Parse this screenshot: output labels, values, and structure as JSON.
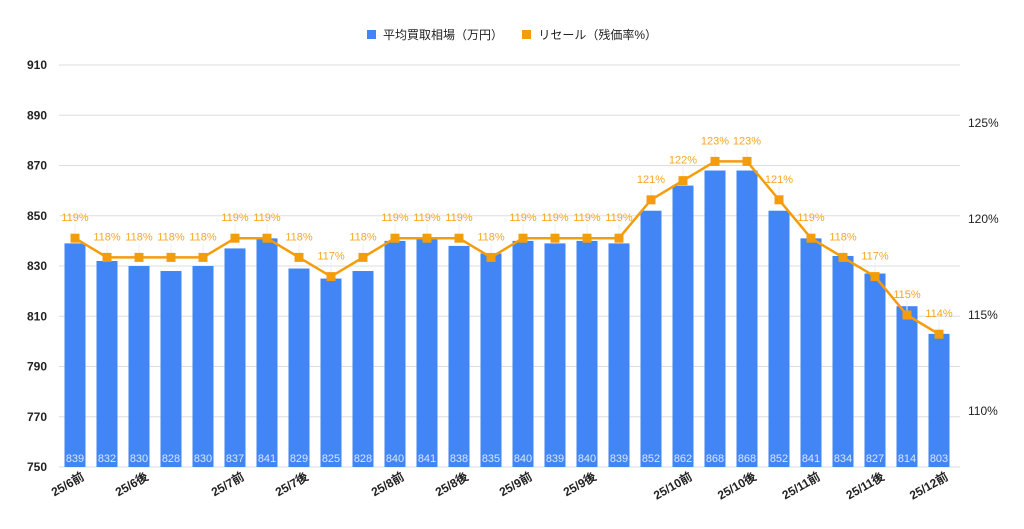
{
  "legend": {
    "bar_label": "平均買取相場（万円）",
    "line_label": "リセール（残価率%）"
  },
  "colors": {
    "bar": "#4285f4",
    "line": "#f59c0c",
    "line_label": "#f5a623",
    "bar_label": "#dbe7fc",
    "grid": "#dddddd",
    "axis_text": "#222222"
  },
  "chart_data": {
    "type": "bar+line",
    "title": "",
    "xlabel": "",
    "ylabel": "",
    "ylabel_right": "",
    "legend_position": "top",
    "grid": true,
    "categories": [
      "25/6前",
      "25/6前",
      "25/6後",
      "25/6後",
      "25/6後",
      "25/7前",
      "25/7前",
      "25/7後",
      "25/7後",
      "25/7後",
      "25/8前",
      "25/8前",
      "25/8後",
      "25/8後",
      "25/9前",
      "25/9前",
      "25/9後",
      "25/9後",
      "25/9後",
      "25/10前",
      "25/10前",
      "25/10後",
      "25/10後",
      "25/11前",
      "25/11前",
      "25/11後",
      "25/11後",
      "25/12前"
    ],
    "visible_tick_labels": [
      {
        "index": 0,
        "label": "25/6前"
      },
      {
        "index": 2,
        "label": "25/6後"
      },
      {
        "index": 5,
        "label": "25/7前"
      },
      {
        "index": 7,
        "label": "25/7後"
      },
      {
        "index": 10,
        "label": "25/8前"
      },
      {
        "index": 12,
        "label": "25/8後"
      },
      {
        "index": 14,
        "label": "25/9前"
      },
      {
        "index": 16,
        "label": "25/9後"
      },
      {
        "index": 19,
        "label": "25/10前"
      },
      {
        "index": 21,
        "label": "25/10後"
      },
      {
        "index": 23,
        "label": "25/11前"
      },
      {
        "index": 25,
        "label": "25/11後"
      },
      {
        "index": 27,
        "label": "25/12前"
      }
    ],
    "series": [
      {
        "name": "平均買取相場（万円）",
        "type": "bar",
        "axis": "left",
        "values": [
          839,
          832,
          830,
          828,
          830,
          837,
          841,
          829,
          825,
          828,
          840,
          841,
          838,
          835,
          840,
          839,
          840,
          839,
          852,
          862,
          868,
          868,
          852,
          841,
          834,
          827,
          814,
          803
        ]
      },
      {
        "name": "リセール（残価率%）",
        "type": "line",
        "axis": "right",
        "values": [
          119,
          118,
          118,
          118,
          118,
          119,
          119,
          118,
          117,
          118,
          119,
          119,
          119,
          118,
          119,
          119,
          119,
          119,
          121,
          122,
          123,
          123,
          121,
          119,
          118,
          117,
          115,
          114
        ]
      }
    ],
    "y_left": {
      "min": 750,
      "max": 910,
      "ticks": [
        750,
        770,
        790,
        810,
        830,
        850,
        870,
        890,
        910
      ]
    },
    "y_right": {
      "ticks": [
        "110%",
        "115%",
        "120%",
        "125%"
      ],
      "tick_values": [
        110,
        115,
        120,
        125
      ]
    }
  }
}
